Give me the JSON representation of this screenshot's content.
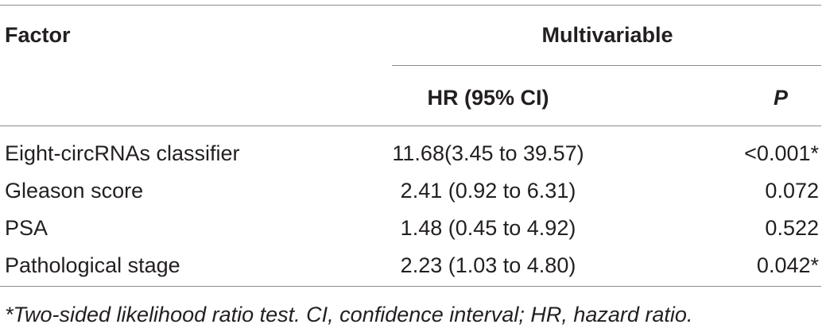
{
  "table": {
    "header": {
      "factor": "Factor",
      "group": "Multivariable",
      "hr": "HR (95% CI)",
      "p": "P"
    },
    "rows": [
      [
        "Eight-circRNAs classifier",
        "11.68(3.45 to 39.57)",
        "<0.001*"
      ],
      [
        "Gleason score",
        "2.41 (0.92 to 6.31)",
        "0.072"
      ],
      [
        "PSA",
        "1.48 (0.45 to 4.92)",
        "0.522"
      ],
      [
        "Pathological stage",
        "2.23 (1.03 to 4.80)",
        "0.042*"
      ]
    ],
    "footnote": "*Two-sided likelihood ratio test. CI, confidence interval; HR, hazard ratio."
  }
}
